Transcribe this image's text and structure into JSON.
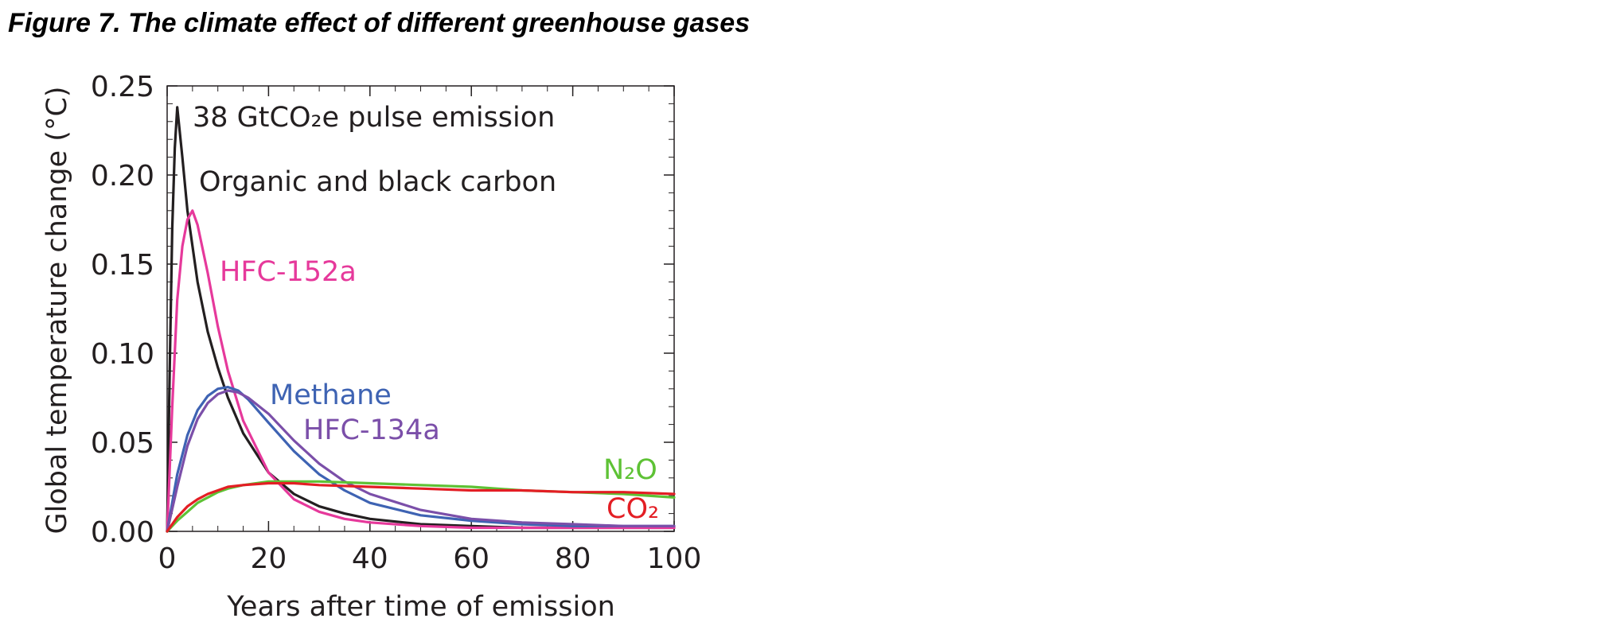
{
  "figure_title": "Figure 7. The climate effect of different greenhouse gases",
  "chart_data": {
    "type": "line",
    "title": "",
    "xlabel": "Years after time of emission",
    "ylabel": "Global temperature change (°C)",
    "xlim": [
      0,
      100
    ],
    "ylim": [
      0,
      0.25
    ],
    "xticks": [
      "0",
      "20",
      "40",
      "60",
      "80",
      "100"
    ],
    "yticks": [
      "0.00",
      "0.05",
      "0.10",
      "0.15",
      "0.20",
      "0.25"
    ],
    "grid": false,
    "legend": "none (series labelled inline)",
    "annotation": "38 GtCO₂e pulse emission",
    "series": [
      {
        "name": "Organic and black carbon",
        "color": "#231f20",
        "x": [
          0,
          0.5,
          1,
          1.5,
          2,
          3,
          4,
          6,
          8,
          10,
          12,
          15,
          20,
          25,
          30,
          35,
          40,
          50,
          60,
          70,
          80,
          90,
          100
        ],
        "y": [
          0,
          0.09,
          0.17,
          0.215,
          0.238,
          0.21,
          0.18,
          0.14,
          0.112,
          0.092,
          0.075,
          0.055,
          0.033,
          0.021,
          0.014,
          0.01,
          0.007,
          0.004,
          0.003,
          0.002,
          0.002,
          0.002,
          0.002
        ]
      },
      {
        "name": "HFC-152a",
        "color": "#e6399b",
        "x": [
          0,
          1,
          2,
          3,
          4,
          5,
          6,
          8,
          10,
          12,
          15,
          20,
          25,
          30,
          35,
          40,
          50,
          60,
          80,
          100
        ],
        "y": [
          0,
          0.07,
          0.13,
          0.16,
          0.175,
          0.18,
          0.172,
          0.145,
          0.115,
          0.09,
          0.062,
          0.033,
          0.018,
          0.011,
          0.007,
          0.005,
          0.003,
          0.002,
          0.002,
          0.002
        ]
      },
      {
        "name": "Methane",
        "color": "#3e63b3",
        "x": [
          0,
          2,
          4,
          6,
          8,
          10,
          12,
          14,
          16,
          20,
          25,
          30,
          35,
          40,
          50,
          60,
          70,
          80,
          90,
          100
        ],
        "y": [
          0,
          0.032,
          0.054,
          0.068,
          0.076,
          0.08,
          0.081,
          0.079,
          0.074,
          0.061,
          0.045,
          0.032,
          0.023,
          0.016,
          0.009,
          0.006,
          0.004,
          0.003,
          0.003,
          0.003
        ]
      },
      {
        "name": "HFC-134a",
        "color": "#7b4fa9",
        "x": [
          0,
          2,
          4,
          6,
          8,
          10,
          12,
          14,
          16,
          20,
          25,
          30,
          35,
          40,
          50,
          60,
          70,
          80,
          90,
          100
        ],
        "y": [
          0,
          0.025,
          0.048,
          0.063,
          0.072,
          0.077,
          0.079,
          0.078,
          0.075,
          0.066,
          0.051,
          0.038,
          0.028,
          0.021,
          0.012,
          0.007,
          0.005,
          0.004,
          0.003,
          0.003
        ]
      },
      {
        "name": "N₂O",
        "color": "#5ec235",
        "x": [
          0,
          2,
          4,
          6,
          8,
          10,
          12,
          15,
          20,
          25,
          30,
          40,
          50,
          60,
          70,
          80,
          90,
          100
        ],
        "y": [
          0,
          0.006,
          0.011,
          0.016,
          0.019,
          0.022,
          0.024,
          0.026,
          0.028,
          0.028,
          0.028,
          0.027,
          0.026,
          0.025,
          0.023,
          0.022,
          0.021,
          0.019
        ]
      },
      {
        "name": "CO₂",
        "color": "#e31e24",
        "x": [
          0,
          2,
          4,
          6,
          8,
          10,
          12,
          15,
          20,
          25,
          30,
          40,
          50,
          60,
          70,
          80,
          90,
          100
        ],
        "y": [
          0,
          0.008,
          0.014,
          0.018,
          0.021,
          0.023,
          0.025,
          0.026,
          0.027,
          0.027,
          0.026,
          0.025,
          0.024,
          0.023,
          0.023,
          0.022,
          0.022,
          0.021
        ]
      }
    ]
  }
}
